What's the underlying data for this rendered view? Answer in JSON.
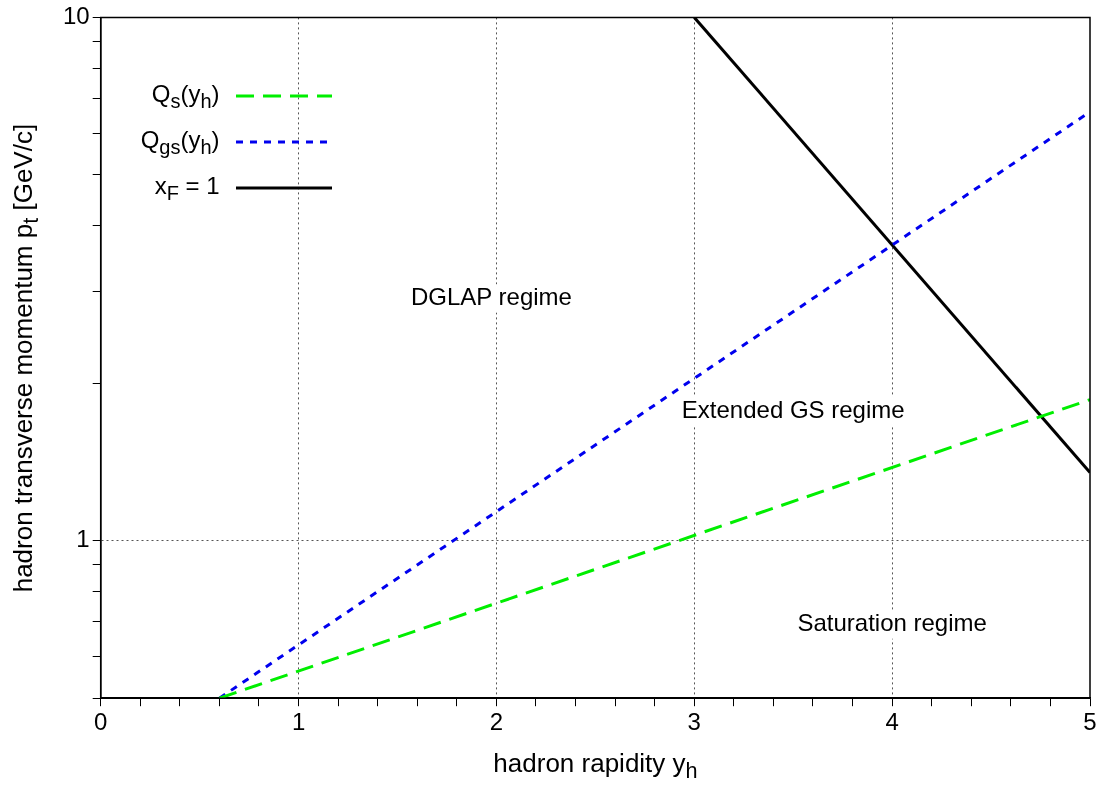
{
  "chart_data": {
    "type": "line",
    "xlabel": "hadron rapidity  y$_{h}$",
    "ylabel": "hadron transverse momentum  p$_{t}$ [GeV/c]",
    "log": "y",
    "grid": true,
    "legend": "top left",
    "marker": "none",
    "xlim": [
      0,
      5
    ],
    "xticks": [
      0,
      {
        "value": 0.2,
        "label": null
      },
      {
        "value": 0.4,
        "label": null
      },
      {
        "value": 0.6,
        "label": null
      },
      {
        "value": 0.8,
        "label": null
      },
      1,
      {
        "value": 1.2,
        "label": null
      },
      {
        "value": 1.4,
        "label": null
      },
      {
        "value": 1.6,
        "label": null
      },
      {
        "value": 1.8,
        "label": null
      },
      2,
      {
        "value": 2.2,
        "label": null
      },
      {
        "value": 2.4,
        "label": null
      },
      {
        "value": 2.6,
        "label": null
      },
      {
        "value": 2.8,
        "label": null
      },
      3,
      {
        "value": 3.2,
        "label": null
      },
      {
        "value": 3.4,
        "label": null
      },
      {
        "value": 3.6,
        "label": null
      },
      {
        "value": 3.8,
        "label": null
      },
      4,
      {
        "value": 4.2,
        "label": null
      },
      {
        "value": 4.4,
        "label": null
      },
      {
        "value": 4.6,
        "label": null
      },
      {
        "value": 4.8,
        "label": null
      },
      5
    ],
    "ylim": [
      0.5,
      10
    ],
    "yticks": [
      {
        "value": 0.5,
        "label": null
      },
      {
        "value": 0.6,
        "label": null
      },
      {
        "value": 0.7,
        "label": null
      },
      {
        "value": 0.8,
        "label": null
      },
      {
        "value": 0.9,
        "label": null
      },
      1,
      {
        "value": 2,
        "label": null
      },
      {
        "value": 3,
        "label": null
      },
      {
        "value": 4,
        "label": null
      },
      {
        "value": 5,
        "label": null
      },
      {
        "value": 6,
        "label": null
      },
      {
        "value": 7,
        "label": null
      },
      {
        "value": 8,
        "label": null
      },
      {
        "value": 9,
        "label": null
      },
      10
    ],
    "series": [
      {
        "name": "Q$_{s}$(y$_{h}$)",
        "color": "#00ee00",
        "line_style": "dashed",
        "x": [
          0.6,
          5
        ],
        "values": [
          0.5,
          1.86
        ]
      },
      {
        "name": "Q$_{gs}$(y$_{h}$)",
        "color": "#0000ee",
        "line_style": "dotted",
        "x": [
          0.6,
          5
        ],
        "values": [
          0.5,
          6.6
        ]
      },
      {
        "name": "x$_{F}$ = 1",
        "color": "#000000",
        "line_style": "solid",
        "x": [
          3,
          5
        ],
        "values": [
          10,
          1.35
        ]
      }
    ],
    "annotations": [
      "DGLAP regime",
      "Extended GS regime",
      "Saturation regime"
    ]
  }
}
